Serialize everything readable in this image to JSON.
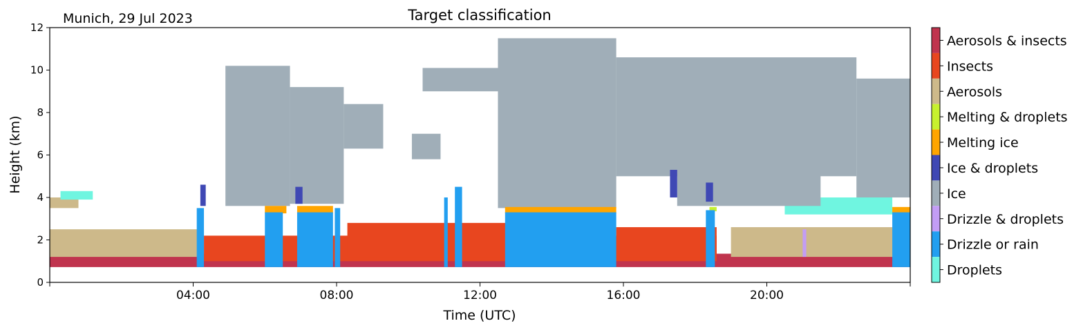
{
  "chart_data": {
    "type": "heatmap",
    "title": "Target classification",
    "location_date": "Munich, 29 Jul 2023",
    "xlabel": "Time (UTC)",
    "ylabel": "Height (km)",
    "xlim_hours": [
      0,
      24
    ],
    "ylim_km": [
      0,
      12
    ],
    "xticks": [
      {
        "hour": 4,
        "label": "04:00"
      },
      {
        "hour": 8,
        "label": "08:00"
      },
      {
        "hour": 12,
        "label": "12:00"
      },
      {
        "hour": 16,
        "label": "16:00"
      },
      {
        "hour": 20,
        "label": "20:00"
      }
    ],
    "yticks": [
      {
        "km": 0,
        "label": "0"
      },
      {
        "km": 2,
        "label": "2"
      },
      {
        "km": 4,
        "label": "4"
      },
      {
        "km": 6,
        "label": "6"
      },
      {
        "km": 8,
        "label": "8"
      },
      {
        "km": 10,
        "label": "10"
      },
      {
        "km": 12,
        "label": "12"
      }
    ],
    "classes": [
      {
        "label": "Aerosols & insects",
        "color": "#c0344e"
      },
      {
        "label": "Insects",
        "color": "#e8461f"
      },
      {
        "label": "Aerosols",
        "color": "#cdb98a"
      },
      {
        "label": "Melting & droplets",
        "color": "#c7f12e"
      },
      {
        "label": "Melting ice",
        "color": "#ffa500"
      },
      {
        "label": "Ice & droplets",
        "color": "#3f48b4"
      },
      {
        "label": "Ice",
        "color": "#a0aeb8"
      },
      {
        "label": "Drizzle & droplets",
        "color": "#c39df5"
      },
      {
        "label": "Drizzle or rain",
        "color": "#229ff0"
      },
      {
        "label": "Droplets",
        "color": "#6ff5e0"
      }
    ],
    "regions": [
      {
        "cls": "Aerosols & insects",
        "t0": 0.0,
        "t1": 24.0,
        "z0": 0.72,
        "z1": 1.35
      },
      {
        "cls": "Aerosols",
        "t0": 0.0,
        "t1": 4.3,
        "z0": 1.2,
        "z1": 2.5
      },
      {
        "cls": "Aerosols",
        "t0": 19.0,
        "t1": 24.0,
        "z0": 1.2,
        "z1": 2.6
      },
      {
        "cls": "Aerosols",
        "t0": 0.0,
        "t1": 0.8,
        "z0": 3.5,
        "z1": 4.0
      },
      {
        "cls": "Insects",
        "t0": 4.3,
        "t1": 18.6,
        "z0": 1.0,
        "z1": 2.2
      },
      {
        "cls": "Insects",
        "t0": 8.3,
        "t1": 12.8,
        "z0": 1.2,
        "z1": 2.8
      },
      {
        "cls": "Insects",
        "t0": 15.8,
        "t1": 18.6,
        "z0": 1.2,
        "z1": 2.6
      },
      {
        "cls": "Droplets",
        "t0": 0.3,
        "t1": 1.2,
        "z0": 3.9,
        "z1": 4.3
      },
      {
        "cls": "Droplets",
        "t0": 20.5,
        "t1": 23.5,
        "z0": 3.2,
        "z1": 4.0
      },
      {
        "cls": "Ice",
        "t0": 4.9,
        "t1": 6.7,
        "z0": 3.6,
        "z1": 10.2
      },
      {
        "cls": "Ice",
        "t0": 6.7,
        "t1": 8.2,
        "z0": 3.7,
        "z1": 9.2
      },
      {
        "cls": "Ice",
        "t0": 8.2,
        "t1": 9.3,
        "z0": 6.3,
        "z1": 8.4
      },
      {
        "cls": "Ice",
        "t0": 10.1,
        "t1": 10.9,
        "z0": 5.8,
        "z1": 7.0
      },
      {
        "cls": "Ice",
        "t0": 10.4,
        "t1": 12.6,
        "z0": 9.0,
        "z1": 10.1
      },
      {
        "cls": "Ice",
        "t0": 12.5,
        "t1": 15.8,
        "z0": 3.5,
        "z1": 11.5
      },
      {
        "cls": "Ice",
        "t0": 15.8,
        "t1": 22.5,
        "z0": 5.0,
        "z1": 10.6
      },
      {
        "cls": "Ice",
        "t0": 17.5,
        "t1": 21.5,
        "z0": 3.6,
        "z1": 6.0
      },
      {
        "cls": "Ice",
        "t0": 22.5,
        "t1": 24.0,
        "z0": 4.0,
        "z1": 9.6
      },
      {
        "cls": "Ice & droplets",
        "t0": 4.2,
        "t1": 4.35,
        "z0": 3.6,
        "z1": 4.6
      },
      {
        "cls": "Ice & droplets",
        "t0": 6.85,
        "t1": 7.05,
        "z0": 3.7,
        "z1": 4.5
      },
      {
        "cls": "Ice & droplets",
        "t0": 17.3,
        "t1": 17.5,
        "z0": 4.0,
        "z1": 5.3
      },
      {
        "cls": "Ice & droplets",
        "t0": 18.3,
        "t1": 18.5,
        "z0": 3.8,
        "z1": 4.7
      },
      {
        "cls": "Melting ice",
        "t0": 6.0,
        "t1": 6.6,
        "z0": 3.25,
        "z1": 3.6
      },
      {
        "cls": "Melting ice",
        "t0": 6.9,
        "t1": 7.9,
        "z0": 3.25,
        "z1": 3.6
      },
      {
        "cls": "Melting ice",
        "t0": 12.7,
        "t1": 15.8,
        "z0": 3.25,
        "z1": 3.55
      },
      {
        "cls": "Melting ice",
        "t0": 23.5,
        "t1": 24.0,
        "z0": 3.25,
        "z1": 3.55
      },
      {
        "cls": "Melting & droplets",
        "t0": 18.4,
        "t1": 18.6,
        "z0": 3.35,
        "z1": 3.55
      },
      {
        "cls": "Drizzle or rain",
        "t0": 4.1,
        "t1": 4.3,
        "z0": 0.72,
        "z1": 3.5
      },
      {
        "cls": "Drizzle or rain",
        "t0": 6.0,
        "t1": 6.5,
        "z0": 0.72,
        "z1": 3.3
      },
      {
        "cls": "Drizzle or rain",
        "t0": 6.9,
        "t1": 7.9,
        "z0": 0.72,
        "z1": 3.3
      },
      {
        "cls": "Drizzle or rain",
        "t0": 7.95,
        "t1": 8.1,
        "z0": 0.72,
        "z1": 3.5
      },
      {
        "cls": "Drizzle or rain",
        "t0": 11.0,
        "t1": 11.1,
        "z0": 0.72,
        "z1": 4.0
      },
      {
        "cls": "Drizzle or rain",
        "t0": 11.3,
        "t1": 11.5,
        "z0": 0.72,
        "z1": 4.5
      },
      {
        "cls": "Drizzle or rain",
        "t0": 12.7,
        "t1": 15.8,
        "z0": 0.72,
        "z1": 3.3
      },
      {
        "cls": "Drizzle or rain",
        "t0": 18.3,
        "t1": 18.55,
        "z0": 0.72,
        "z1": 3.4
      },
      {
        "cls": "Drizzle or rain",
        "t0": 23.5,
        "t1": 24.0,
        "z0": 0.72,
        "z1": 3.3
      },
      {
        "cls": "Drizzle & droplets",
        "t0": 21.0,
        "t1": 21.1,
        "z0": 1.2,
        "z1": 2.5
      }
    ]
  }
}
